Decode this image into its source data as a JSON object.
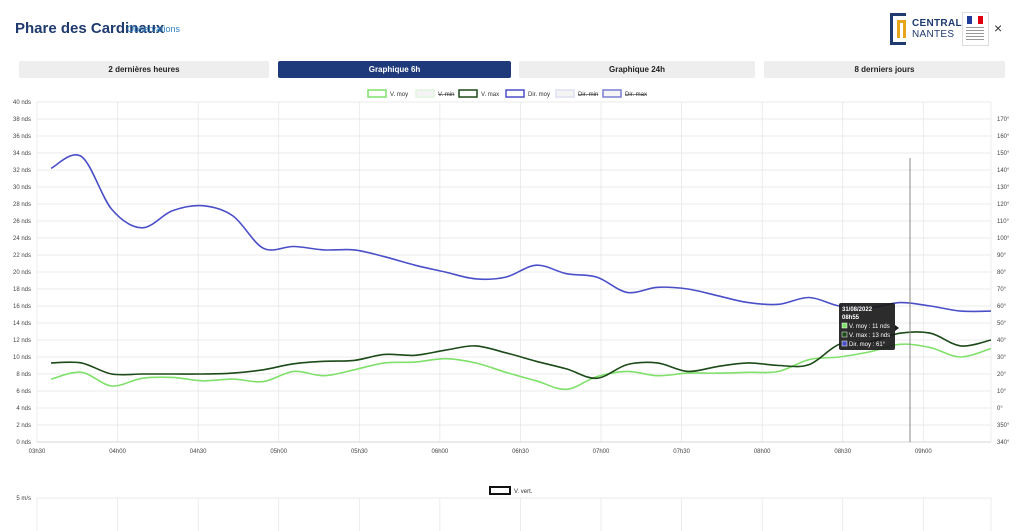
{
  "header": {
    "title": "Phare des Cardinaux",
    "subtitle": "Observations",
    "logo_line1": "CENTRALE",
    "logo_line2": "NANTES",
    "close_label": "×"
  },
  "tabs": [
    {
      "label": "2 dernières heures",
      "active": false
    },
    {
      "label": "Graphique 6h",
      "active": true
    },
    {
      "label": "Graphique 24h",
      "active": false
    },
    {
      "label": "8 derniers jours",
      "active": false
    }
  ],
  "colors": {
    "v_moy": "#7fe06a",
    "v_max": "#1c4a18",
    "dir_moy": "#4a4fc8",
    "dir_min": "#c9cbe8",
    "dir_max": "#1f2ab5",
    "v_min": "#cdeec8",
    "grid": "#e4e4e4",
    "tab_active": "#1f3a7a"
  },
  "chart_data": [
    {
      "type": "line",
      "x_labels": [
        "03h30",
        "04h00",
        "04h30",
        "05h00",
        "05h30",
        "06h00",
        "06h30",
        "07h00",
        "07h30",
        "08h00",
        "08h30",
        "09h00"
      ],
      "y_left_ticks": [
        "0 nds",
        "2 nds",
        "4 nds",
        "6 nds",
        "8 nds",
        "10 nds",
        "12 nds",
        "14 nds",
        "16 nds",
        "18 nds",
        "20 nds",
        "22 nds",
        "24 nds",
        "26 nds",
        "28 nds",
        "30 nds",
        "32 nds",
        "34 nds",
        "36 nds",
        "38 nds",
        "40 nds"
      ],
      "y_right_ticks": [
        "340°",
        "350°",
        "0°",
        "10°",
        "20°",
        "30°",
        "40°",
        "50°",
        "60°",
        "70°",
        "80°",
        "90°",
        "100°",
        "110°",
        "120°",
        "130°",
        "140°",
        "150°",
        "160°",
        "170°"
      ],
      "ylim_left": [
        0,
        40
      ],
      "ylim_right": [
        -20,
        180
      ],
      "legend": [
        {
          "name": "V. moy",
          "hidden": false,
          "key": "v_moy"
        },
        {
          "name": "V. min",
          "hidden": true,
          "key": "v_min"
        },
        {
          "name": "V. max",
          "hidden": false,
          "key": "v_max"
        },
        {
          "name": "Dir. moy",
          "hidden": false,
          "key": "dir_moy"
        },
        {
          "name": "Dir. min",
          "hidden": true,
          "key": "dir_min"
        },
        {
          "name": "Dir. max",
          "hidden": true,
          "key": "dir_max"
        }
      ],
      "series": [
        {
          "name": "V. moy",
          "axis": "left",
          "key": "v_moy",
          "values": [
            7.4,
            8.2,
            6.6,
            7.5,
            7.6,
            7.2,
            7.4,
            7.1,
            8.3,
            7.8,
            8.5,
            9.3,
            9.4,
            9.8,
            9.3,
            8.2,
            7.2,
            6.2,
            7.7,
            8.3,
            7.8,
            8.1,
            8.1,
            8.2,
            8.3,
            9.7,
            10.0,
            10.6,
            11.5,
            11.1,
            10.0,
            11.0
          ]
        },
        {
          "name": "V. max",
          "axis": "left",
          "key": "v_max",
          "values": [
            9.3,
            9.3,
            8.0,
            8.0,
            8.0,
            8.0,
            8.1,
            8.5,
            9.2,
            9.5,
            9.6,
            10.3,
            10.2,
            10.8,
            11.3,
            10.5,
            9.5,
            8.6,
            7.5,
            9.1,
            9.3,
            8.3,
            8.9,
            9.3,
            9.0,
            9.1,
            11.5,
            11.8,
            12.8,
            12.8,
            11.3,
            12.0
          ]
        },
        {
          "name": "Dir. moy",
          "axis": "right",
          "key": "dir_moy",
          "values": [
            141,
            148,
            117,
            106,
            116,
            119,
            113,
            94,
            95,
            93,
            93,
            89,
            84,
            80,
            76,
            77,
            84,
            79,
            77,
            68,
            71,
            70,
            66,
            62,
            61,
            65,
            60,
            59,
            62,
            60,
            57,
            57
          ]
        }
      ],
      "tooltip": {
        "title": "31/08/2022",
        "time": "08h55",
        "lines": [
          "V. moy : 11 nds",
          "V. max : 13 nds",
          "Dir. moy : 61°"
        ]
      }
    },
    {
      "type": "line",
      "y_left_ticks": [
        "5 m/s"
      ],
      "legend": [
        {
          "name": "V. vert.",
          "hidden": false,
          "key": "v_vert"
        }
      ],
      "series": []
    }
  ]
}
